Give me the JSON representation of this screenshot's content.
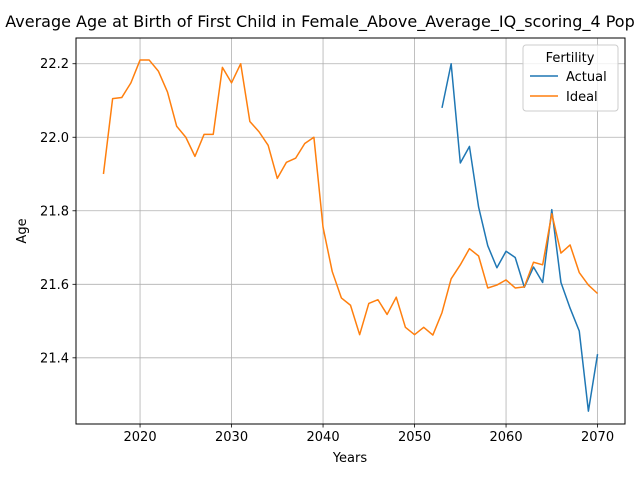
{
  "chart_data": {
    "type": "line",
    "title": "Average Age at Birth of First Child in Female_Above_Average_IQ_scoring_4 Pop",
    "xlabel": "Years",
    "ylabel": "Age",
    "xlim": [
      2013,
      2073
    ],
    "ylim": [
      21.22,
      22.27
    ],
    "xticks": [
      2020,
      2030,
      2040,
      2050,
      2060,
      2070
    ],
    "yticks": [
      21.4,
      21.6,
      21.8,
      22.0,
      22.2
    ],
    "xtick_labels": [
      "2020",
      "2030",
      "2040",
      "2050",
      "2060",
      "2070"
    ],
    "ytick_labels": [
      "21.4",
      "21.6",
      "21.8",
      "22.0",
      "22.2"
    ],
    "grid": true,
    "legend": {
      "title": "Fertility",
      "placement": "top-right"
    },
    "series": [
      {
        "name": "Actual",
        "color": "#1f77b4",
        "x": [
          2053,
          2054,
          2055,
          2056,
          2057,
          2058,
          2059,
          2060,
          2061,
          2062,
          2063,
          2064,
          2065,
          2066,
          2067,
          2068,
          2069,
          2070
        ],
        "values": [
          22.08,
          22.2,
          21.93,
          21.975,
          21.81,
          21.705,
          21.645,
          21.69,
          21.673,
          21.592,
          21.647,
          21.605,
          21.803,
          21.605,
          21.535,
          21.473,
          21.255,
          21.41
        ]
      },
      {
        "name": "Ideal",
        "color": "#ff7f0e",
        "x": [
          2016,
          2017,
          2018,
          2019,
          2020,
          2021,
          2022,
          2023,
          2024,
          2025,
          2026,
          2027,
          2028,
          2029,
          2030,
          2031,
          2032,
          2033,
          2034,
          2035,
          2036,
          2037,
          2038,
          2039,
          2040,
          2041,
          2042,
          2043,
          2044,
          2045,
          2046,
          2047,
          2048,
          2049,
          2050,
          2051,
          2052,
          2053,
          2054,
          2055,
          2056,
          2057,
          2058,
          2059,
          2060,
          2061,
          2062,
          2063,
          2064,
          2065,
          2066,
          2067,
          2068,
          2069,
          2070
        ],
        "values": [
          21.9,
          22.105,
          22.108,
          22.148,
          22.21,
          22.21,
          22.18,
          22.123,
          22.03,
          22.0,
          21.948,
          22.008,
          22.008,
          22.19,
          22.148,
          22.2,
          22.043,
          22.015,
          21.978,
          21.888,
          21.932,
          21.943,
          21.983,
          22.0,
          21.755,
          21.635,
          21.563,
          21.543,
          21.463,
          21.548,
          21.558,
          21.518,
          21.565,
          21.483,
          21.463,
          21.483,
          21.462,
          21.523,
          21.615,
          21.653,
          21.697,
          21.677,
          21.59,
          21.598,
          21.612,
          21.59,
          21.593,
          21.66,
          21.653,
          21.792,
          21.685,
          21.707,
          21.632,
          21.598,
          21.575
        ]
      }
    ]
  }
}
